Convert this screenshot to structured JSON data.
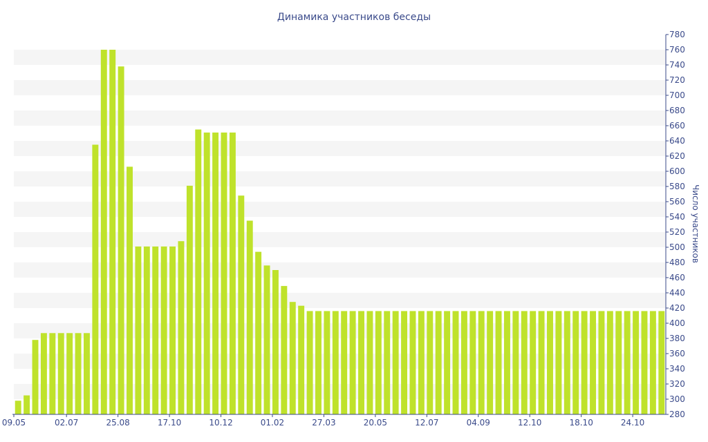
{
  "chart_data": {
    "type": "bar",
    "title": "Динамика участников беседы",
    "xlabel": "",
    "ylabel": "Число участников",
    "ylim": [
      280,
      780
    ],
    "ytick_step": 20,
    "y_axis_position": "right",
    "grid": "alternating horizontal bands",
    "bar_color": "#bfe22b",
    "band_color": "#f5f5f5",
    "text_color": "#3a4a8a",
    "x_tick_labels": [
      "09.05",
      "02.07",
      "25.08",
      "17.10",
      "10.12",
      "01.02",
      "27.03",
      "20.05",
      "12.07",
      "04.09",
      "12.10",
      "18.10",
      "24.10"
    ],
    "values": [
      298,
      305,
      378,
      387,
      387,
      387,
      387,
      387,
      387,
      635,
      760,
      760,
      738,
      606,
      501,
      501,
      501,
      501,
      501,
      508,
      581,
      655,
      651,
      651,
      651,
      651,
      568,
      535,
      494,
      476,
      470,
      449,
      428,
      423,
      416,
      416,
      416,
      416,
      416,
      416,
      416,
      416,
      416,
      416,
      416,
      416,
      416,
      416,
      416,
      416,
      416,
      416,
      416,
      416,
      416,
      416,
      416,
      416,
      416,
      416,
      416,
      416,
      416,
      416,
      416,
      416,
      416,
      416,
      416,
      416,
      416,
      416,
      416,
      416,
      416,
      416
    ]
  }
}
